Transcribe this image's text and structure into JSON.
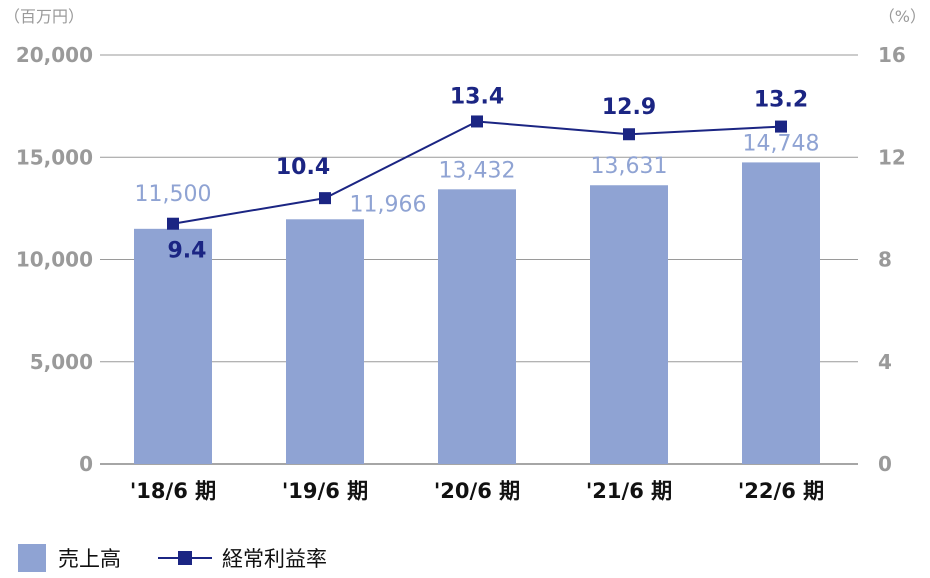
{
  "chart_data": {
    "type": "bar",
    "categories": [
      "'18/6 期",
      "'19/6 期",
      "'20/6 期",
      "'21/6 期",
      "'22/6 期"
    ],
    "series": [
      {
        "name": "売上高",
        "type": "bar",
        "axis": "left",
        "color": "#8fa3d3",
        "values": [
          11500,
          11966,
          13432,
          13631,
          14748
        ],
        "labels": [
          "11,500",
          "11,966",
          "13,432",
          "13,631",
          "14,748"
        ]
      },
      {
        "name": "経常利益率",
        "type": "line",
        "axis": "right",
        "color": "#1b2583",
        "values": [
          9.4,
          10.4,
          13.4,
          12.9,
          13.2
        ],
        "labels": [
          "9.4",
          "10.4",
          "13.4",
          "12.9",
          "13.2"
        ]
      }
    ],
    "y_left": {
      "unit": "（百万円）",
      "ylim": [
        0,
        20000
      ],
      "ticks": [
        0,
        5000,
        10000,
        15000,
        20000
      ],
      "tick_labels": [
        "0",
        "5,000",
        "10,000",
        "15,000",
        "20,000"
      ]
    },
    "y_right": {
      "unit": "（%）",
      "ylim": [
        0,
        16
      ],
      "ticks": [
        0,
        4,
        8,
        12,
        16
      ],
      "tick_labels": [
        "0",
        "4",
        "8",
        "12",
        "16"
      ]
    },
    "grid": true,
    "legend_position": "bottom-left"
  }
}
